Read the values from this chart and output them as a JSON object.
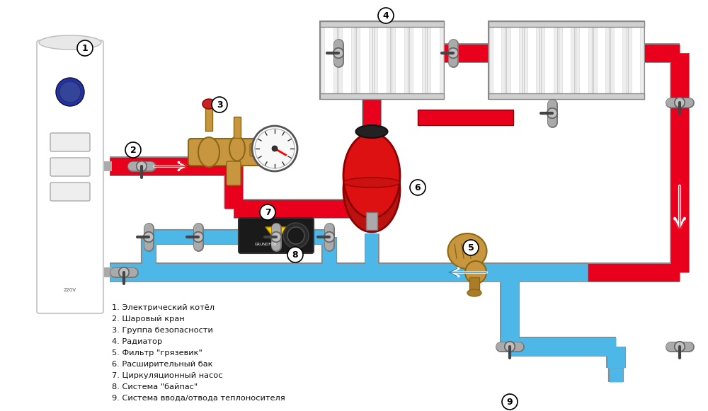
{
  "bg_color": "#ffffff",
  "pipe_red": "#e8001c",
  "pipe_blue": "#4db8e8",
  "pipe_lw": 18,
  "pipe_outline_color": "#dddddd",
  "labels": [
    "1. Электрический котёл",
    "2. Шаровый кран",
    "3. Группа безопасности",
    "4. Радиатор",
    "5. Фильтр \"грязевик\"",
    "6. Расширительный бак",
    "7. Циркуляционный насос",
    "8. Система \"байпас\"",
    "9. Система ввода/отвода теплоносителя"
  ]
}
